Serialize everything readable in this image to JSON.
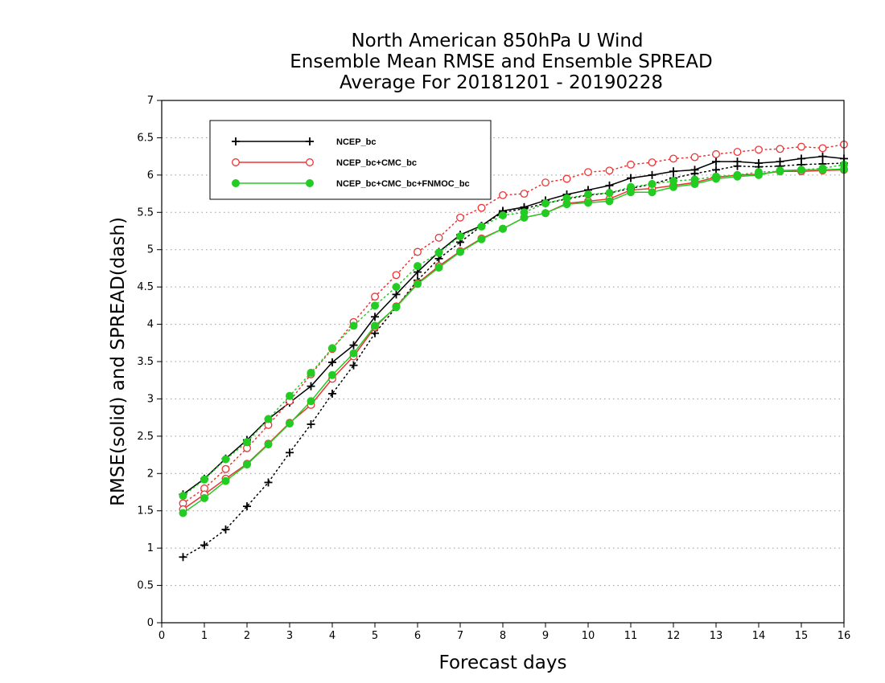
{
  "chart_data": {
    "type": "line",
    "title_lines": [
      "North American 850hPa U Wind",
      "Ensemble Mean RMSE and Ensemble SPREAD",
      "Average For 20181201 - 20190228"
    ],
    "xlabel": "Forecast days",
    "ylabel": "RMSE(solid) and SPREAD(dash)",
    "xlim": [
      0,
      16
    ],
    "ylim": [
      0,
      7
    ],
    "x_ticks": [
      0,
      1,
      2,
      3,
      4,
      5,
      6,
      7,
      8,
      9,
      10,
      11,
      12,
      13,
      14,
      15,
      16
    ],
    "y_ticks": [
      0,
      0.5,
      1,
      1.5,
      2,
      2.5,
      3,
      3.5,
      4,
      4.5,
      5,
      5.5,
      6,
      6.5,
      7
    ],
    "grid": "horizontal dotted",
    "legend_position": "top-left",
    "x": [
      0.5,
      1,
      1.5,
      2,
      2.5,
      3,
      3.5,
      4,
      4.5,
      5,
      5.5,
      6,
      6.5,
      7,
      7.5,
      8,
      8.5,
      9,
      9.5,
      10,
      10.5,
      11,
      11.5,
      12,
      12.5,
      13,
      13.5,
      14,
      14.5,
      15,
      15.5,
      16
    ],
    "series": [
      {
        "name": "NCEP_bc",
        "color": "#000000",
        "marker": "plus",
        "rmse": [
          1.72,
          1.93,
          2.2,
          2.45,
          2.73,
          2.95,
          3.17,
          3.49,
          3.72,
          4.1,
          4.4,
          4.7,
          4.97,
          5.2,
          5.32,
          5.52,
          5.57,
          5.66,
          5.74,
          5.8,
          5.86,
          5.96,
          6.0,
          6.05,
          6.07,
          6.18,
          6.18,
          6.16,
          6.18,
          6.22,
          6.25,
          6.22
        ],
        "spread": [
          0.88,
          1.04,
          1.25,
          1.56,
          1.88,
          2.28,
          2.66,
          3.07,
          3.45,
          3.88,
          4.23,
          4.59,
          4.88,
          5.1,
          5.32,
          5.5,
          5.55,
          5.62,
          5.68,
          5.73,
          5.76,
          5.82,
          5.88,
          5.96,
          6.02,
          6.07,
          6.12,
          6.11,
          6.12,
          6.14,
          6.15,
          6.16
        ]
      },
      {
        "name": "NCEP_bc+CMC_bc",
        "color": "#ee3333",
        "marker": "open-circle",
        "rmse": [
          1.52,
          1.72,
          1.93,
          2.13,
          2.4,
          2.68,
          2.92,
          3.27,
          3.57,
          3.96,
          4.24,
          4.55,
          4.78,
          4.98,
          5.15,
          5.28,
          5.43,
          5.49,
          5.62,
          5.65,
          5.68,
          5.8,
          5.82,
          5.86,
          5.9,
          5.97,
          6.0,
          6.01,
          6.05,
          6.05,
          6.06,
          6.07
        ],
        "spread": [
          1.6,
          1.8,
          2.06,
          2.34,
          2.65,
          2.97,
          3.33,
          3.67,
          4.03,
          4.37,
          4.66,
          4.97,
          5.16,
          5.43,
          5.56,
          5.73,
          5.75,
          5.9,
          5.95,
          6.04,
          6.06,
          6.14,
          6.17,
          6.22,
          6.24,
          6.28,
          6.31,
          6.34,
          6.35,
          6.38,
          6.36,
          6.41
        ]
      },
      {
        "name": "NCEP_bc+CMC_bc+FNMOC_bc",
        "color": "#22cc22",
        "marker": "filled-circle",
        "rmse": [
          1.47,
          1.67,
          1.9,
          2.12,
          2.39,
          2.67,
          2.97,
          3.32,
          3.61,
          3.98,
          4.23,
          4.54,
          4.76,
          4.97,
          5.14,
          5.28,
          5.43,
          5.49,
          5.61,
          5.63,
          5.65,
          5.77,
          5.77,
          5.84,
          5.88,
          5.95,
          5.98,
          6.0,
          6.06,
          6.07,
          6.07,
          6.08
        ],
        "spread": [
          1.7,
          1.92,
          2.19,
          2.42,
          2.73,
          3.04,
          3.35,
          3.68,
          3.98,
          4.25,
          4.5,
          4.78,
          4.96,
          5.18,
          5.31,
          5.46,
          5.5,
          5.62,
          5.69,
          5.74,
          5.76,
          5.84,
          5.88,
          5.92,
          5.94,
          5.98,
          6.0,
          6.04,
          6.05,
          6.07,
          6.09,
          6.14
        ]
      }
    ]
  }
}
